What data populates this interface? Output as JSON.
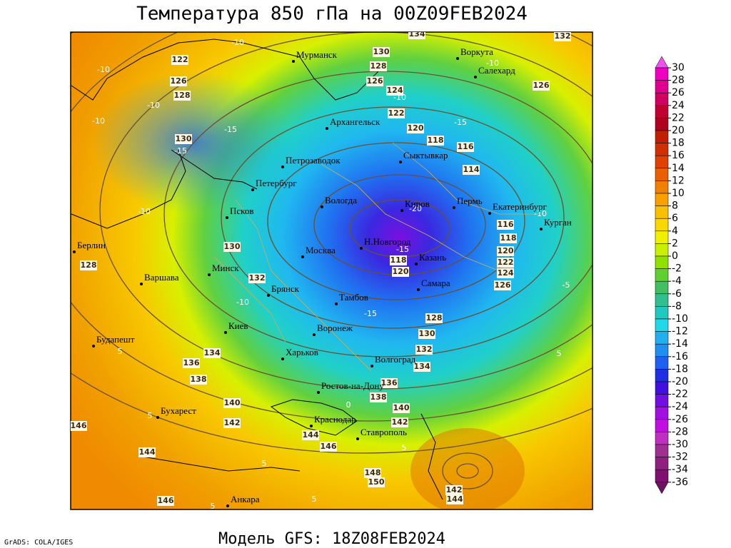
{
  "title": "Температура 850 гПа на 00Z09FEB2024",
  "subtitle": "Модель GFS: 18Z08FEB2024",
  "credit": "GrADS: COLA/IGES",
  "map": {
    "cities": [
      "Мурманск",
      "Воркута",
      "Салехард",
      "Архангельск",
      "Сыктывкар",
      "Петрозаводок",
      "Петербург",
      "Вологда",
      "Киров",
      "Пермь",
      "Екатеринбург",
      "Курган",
      "Псков",
      "Н.Новгород",
      "Казань",
      "Москва",
      "Минск",
      "Берлин",
      "Варшава",
      "Брянск",
      "Самара",
      "Тамбов",
      "Киев",
      "Воронеж",
      "Харьков",
      "Будапешт",
      "Волгоград",
      "Ростов-на-Дону",
      "Бухарест",
      "Краснодар",
      "Ставрополь",
      "Анкара"
    ],
    "height_labels": [
      122,
      126,
      128,
      130,
      128,
      126,
      124,
      122,
      120,
      118,
      116,
      114,
      130,
      130,
      128,
      132,
      116,
      118,
      120,
      122,
      124,
      126,
      118,
      120,
      128,
      130,
      132,
      134,
      136,
      138,
      134,
      136,
      138,
      140,
      140,
      142,
      142,
      144,
      146,
      144,
      146,
      148,
      150,
      142,
      144,
      146,
      134,
      132,
      126
    ],
    "temp_labels": [
      -10,
      -10,
      -10,
      -15,
      -15,
      -10,
      -10,
      -15,
      -20,
      -10,
      -15,
      -10,
      -10,
      -5,
      -15,
      5,
      5,
      5,
      5,
      0,
      5,
      5,
      5,
      -10
    ]
  },
  "colorbar": {
    "ticks": [
      30,
      28,
      26,
      24,
      22,
      20,
      18,
      16,
      14,
      12,
      10,
      8,
      6,
      4,
      2,
      0,
      -2,
      -4,
      -6,
      -8,
      -10,
      -12,
      -14,
      -16,
      -18,
      -20,
      -22,
      -24,
      -26,
      -28,
      -30,
      -32,
      -34,
      -36
    ],
    "colors": [
      "#f050f0",
      "#f000c0",
      "#e00090",
      "#d00060",
      "#c00030",
      "#b00020",
      "#c02000",
      "#d03000",
      "#e04000",
      "#e86000",
      "#f08000",
      "#f8a000",
      "#f8c000",
      "#f8d800",
      "#f0f000",
      "#c8f000",
      "#90e000",
      "#60d030",
      "#40c060",
      "#30c090",
      "#20c8c0",
      "#20d8e8",
      "#20b0f0",
      "#2090f0",
      "#2060f0",
      "#2030e0",
      "#4010e0",
      "#7010e0",
      "#a010e0",
      "#c010e0",
      "#c030c0",
      "#a03090",
      "#902080",
      "#801070",
      "#701060"
    ]
  }
}
